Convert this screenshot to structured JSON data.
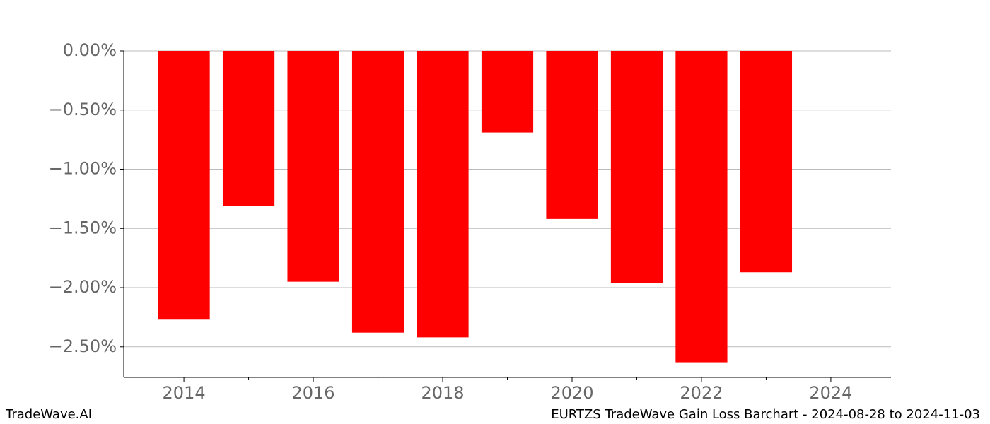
{
  "chart_data": {
    "type": "bar",
    "title": "EURTZS TradeWave Gain Loss Barchart - 2024-08-28 to 2024-11-03",
    "watermark": "TradeWave.AI",
    "x": [
      2014,
      2015,
      2016,
      2017,
      2018,
      2019,
      2020,
      2021,
      2022,
      2023
    ],
    "values": [
      -2.27,
      -1.31,
      -1.95,
      -2.38,
      -2.42,
      -0.69,
      -1.42,
      -1.96,
      -2.63,
      -1.87
    ],
    "color": "#ff0000",
    "bar_width": 0.8,
    "xlim": [
      2013.07,
      2024.93
    ],
    "xticks": [
      2014,
      2016,
      2018,
      2020,
      2022,
      2024
    ],
    "xminorticks": [
      2015,
      2017,
      2019,
      2021,
      2023
    ],
    "ylim": [
      -2.758,
      0
    ],
    "yticks": [
      {
        "value": 0,
        "label": "0.00%"
      },
      {
        "value": -0.5,
        "label": "−0.50%"
      },
      {
        "value": -1.0,
        "label": "−1.00%"
      },
      {
        "value": -1.5,
        "label": "−1.50%"
      },
      {
        "value": -2.0,
        "label": "−2.00%"
      },
      {
        "value": -2.5,
        "label": "−2.50%"
      }
    ],
    "grid": true
  }
}
